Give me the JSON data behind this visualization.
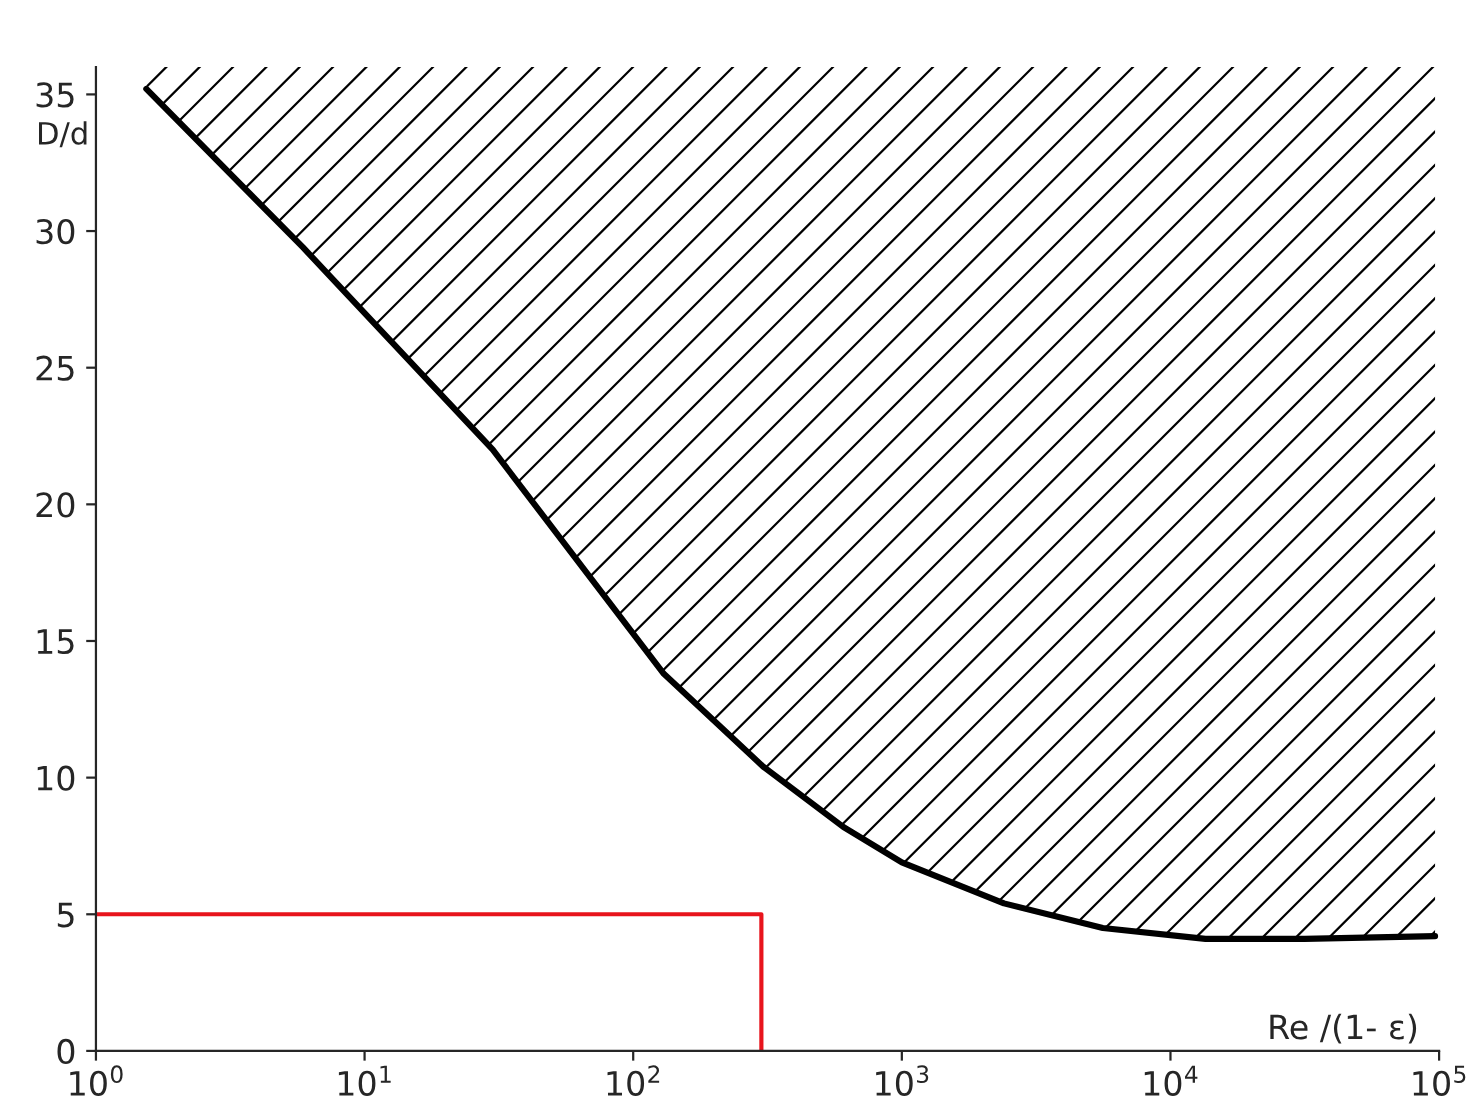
{
  "chart_data": {
    "type": "line",
    "xlabel": "Re /(1- ε)",
    "ylabel": "D/d",
    "log": "x",
    "xlim": [
      1,
      100000
    ],
    "ylim": [
      0,
      36
    ],
    "xticks": [
      {
        "value": 1,
        "label": "10$^{0}$"
      },
      {
        "value": 10,
        "label": "10$^{1}$"
      },
      {
        "value": 100,
        "label": "10$^{2}$"
      },
      {
        "value": 1000,
        "label": "10$^{3}$"
      },
      {
        "value": 10000,
        "label": "10$^{4}$"
      },
      {
        "value": 100000,
        "label": "10$^{5}$"
      }
    ],
    "yticks": [
      0,
      5,
      10,
      15,
      20,
      25,
      30,
      35
    ],
    "grid": false,
    "legend": false,
    "marker": "none",
    "line_style": "solid",
    "series": [
      {
        "color": "#000000",
        "x": [
          1.54,
          5.9,
          30,
          130,
          305,
          605,
          1000,
          2400,
          5600,
          13500,
          31600,
          96600
        ],
        "values": [
          35.2,
          29.4,
          22.0,
          13.8,
          10.4,
          8.2,
          6.9,
          5.4,
          4.5,
          4.1,
          4.1,
          4.2
        ],
        "lower": [
          35.2,
          29.4,
          22.0,
          13.8,
          10.4,
          8.2,
          6.9,
          5.4,
          4.5,
          4.1,
          4.1,
          4.2
        ],
        "upper": [
          36,
          36,
          36,
          36,
          36,
          36,
          36,
          36,
          36,
          36,
          36,
          36
        ]
      },
      {
        "color": "#e8141c",
        "x": [
          1,
          300,
          300
        ],
        "values": [
          5,
          5,
          0
        ]
      }
    ]
  }
}
